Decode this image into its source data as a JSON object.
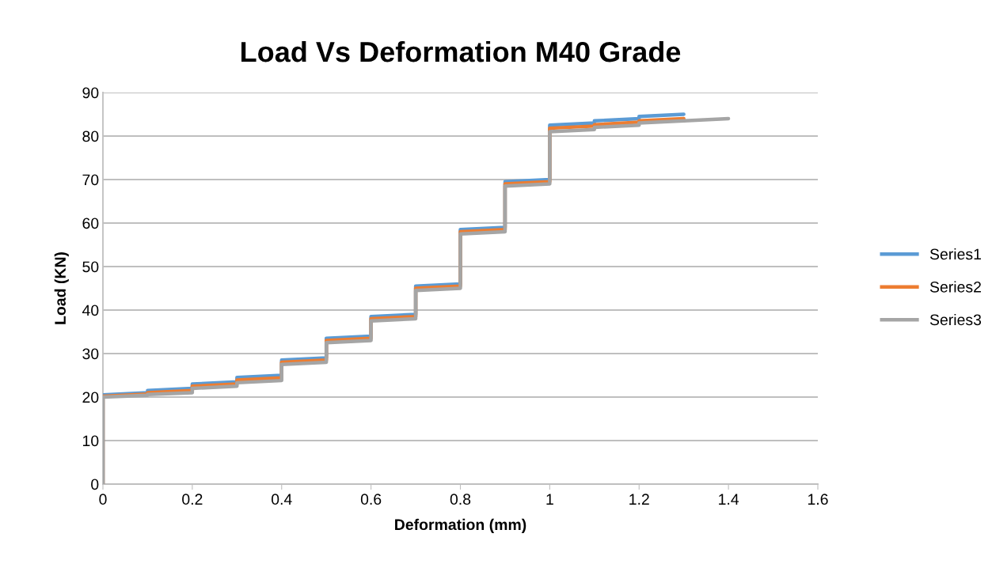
{
  "chart_data": {
    "type": "line",
    "title": "Load Vs Deformation M40 Grade",
    "xlabel": "Deformation (mm)",
    "ylabel": "Load (KN)",
    "xlim": [
      0,
      1.6
    ],
    "xticks": [
      0,
      0.2,
      0.4,
      0.6,
      0.8,
      1,
      1.2,
      1.4,
      1.6
    ],
    "ylim": [
      0,
      90
    ],
    "yticks": [
      0,
      10,
      20,
      30,
      40,
      50,
      60,
      70,
      80,
      90
    ],
    "grid": "y",
    "legend": "right",
    "marker": "none",
    "line_style": "solid",
    "series": [
      {
        "name": "Series1",
        "color": "#5b9bd5",
        "x": [
          0,
          0,
          0.1,
          0.1,
          0.2,
          0.2,
          0.3,
          0.3,
          0.4,
          0.4,
          0.5,
          0.5,
          0.6,
          0.6,
          0.7,
          0.7,
          0.8,
          0.8,
          0.9,
          0.9,
          1.0,
          1.0,
          1.1,
          1.1,
          1.2,
          1.2,
          1.3
        ],
        "values": [
          0,
          20.5,
          21,
          21.5,
          22,
          23,
          23.5,
          24.5,
          25,
          28.5,
          29,
          33.5,
          34,
          38.5,
          39,
          45.5,
          46,
          58.5,
          59,
          69.5,
          70,
          82.5,
          83,
          83.5,
          84,
          84.5,
          85
        ]
      },
      {
        "name": "Series2",
        "color": "#ed7d31",
        "x": [
          0,
          0,
          0.1,
          0.1,
          0.2,
          0.2,
          0.3,
          0.3,
          0.4,
          0.4,
          0.5,
          0.5,
          0.6,
          0.6,
          0.7,
          0.7,
          0.8,
          0.8,
          0.9,
          0.9,
          1.0,
          1.0,
          1.1,
          1.1,
          1.2,
          1.2,
          1.3,
          1.3
        ],
        "values": [
          0,
          20.2,
          20.7,
          21,
          21.5,
          22.5,
          23,
          23.9,
          24.4,
          28,
          28.5,
          33,
          33.5,
          38,
          38.5,
          45,
          45.5,
          58,
          58.5,
          69,
          69.5,
          81.8,
          82.3,
          82.6,
          83.2,
          83.5,
          84,
          83.5
        ]
      },
      {
        "name": "Series3",
        "color": "#a5a5a5",
        "x": [
          0,
          0,
          0.1,
          0.1,
          0.2,
          0.2,
          0.3,
          0.3,
          0.4,
          0.4,
          0.5,
          0.5,
          0.6,
          0.6,
          0.7,
          0.7,
          0.8,
          0.8,
          0.9,
          0.9,
          1.0,
          1.0,
          1.1,
          1.1,
          1.2,
          1.2,
          1.3,
          1.4
        ],
        "values": [
          0,
          20,
          20.4,
          20.6,
          21,
          22,
          22.5,
          23.3,
          23.8,
          27.5,
          28,
          32.5,
          33,
          37.5,
          38,
          44.5,
          45,
          57.5,
          58,
          68.5,
          69,
          81,
          81.5,
          82,
          82.5,
          83,
          83.5,
          84
        ]
      }
    ]
  }
}
